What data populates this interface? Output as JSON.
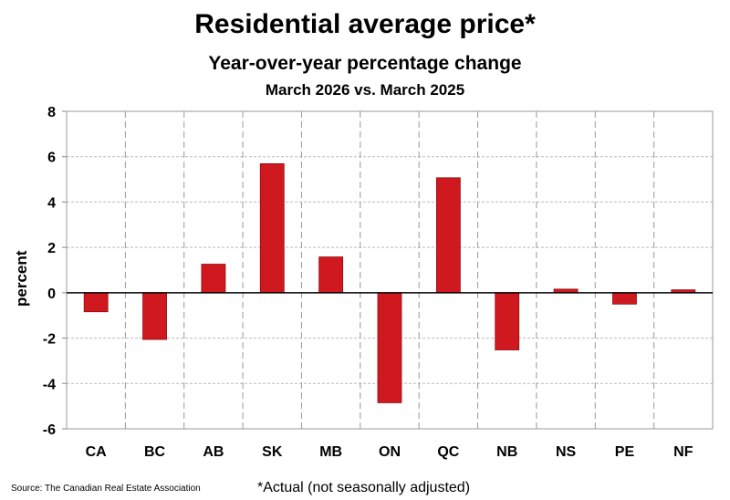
{
  "chart_data": {
    "type": "bar",
    "title": "Residential average price*",
    "subtitle": "Year-over-year percentage change",
    "subtitle2": "March 2026 vs. March 2025",
    "ylabel": "percent",
    "xlabel": "",
    "categories": [
      "CA",
      "BC",
      "AB",
      "SK",
      "MB",
      "ON",
      "QC",
      "NB",
      "NS",
      "PE",
      "NF"
    ],
    "values": [
      -0.84,
      -2.06,
      1.26,
      5.69,
      1.58,
      -4.85,
      5.07,
      -2.52,
      0.16,
      -0.5,
      0.13
    ],
    "ylim": [
      -6,
      8
    ],
    "yticks": [
      "-6",
      "-4",
      "-2",
      "0",
      "2",
      "4",
      "6",
      "8"
    ],
    "grid": true,
    "bar_color": "#d0191f"
  },
  "footer": {
    "source": "Source: The Canadian Real Estate Association",
    "note": "*Actual (not seasonally adjusted)"
  }
}
